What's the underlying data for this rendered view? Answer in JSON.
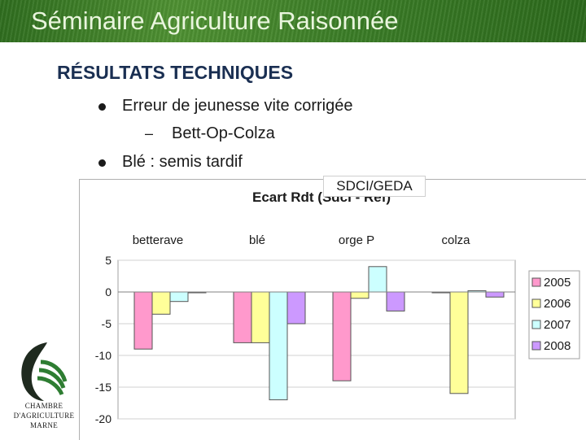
{
  "slide": {
    "title": "Séminaire Agriculture Raisonnée",
    "heading": "RÉSULTATS TECHNIQUES",
    "bullets": [
      {
        "text": "Erreur de jeunesse vite corrigée",
        "sub": "Bett-Op-Colza"
      },
      {
        "text": "Blé : semis tardif"
      }
    ],
    "source_tag": "SDCI/GEDA"
  },
  "logo": {
    "icon": "chambre-agriculture-logo-icon",
    "line1": "CHAMBRE",
    "line2": "D'AGRICULTURE",
    "line3": "MARNE"
  },
  "colors": {
    "banner": "#3b7d27",
    "heading": "#1a2f52",
    "s2005": "#ff99cc",
    "s2006": "#ffff99",
    "s2007": "#ccffff",
    "s2008": "#cc99ff"
  },
  "chart_data": {
    "type": "bar",
    "title": "Ecart Rdt (SdcI - Ref)",
    "categories": [
      "betterave",
      "blé",
      "orge P",
      "colza"
    ],
    "series": [
      {
        "name": "2005",
        "values": [
          -9,
          -8,
          -14,
          0
        ]
      },
      {
        "name": "2006",
        "values": [
          -3.5,
          -8,
          -1,
          -16
        ]
      },
      {
        "name": "2007",
        "values": [
          -1.5,
          -17,
          4,
          0.2
        ]
      },
      {
        "name": "2008",
        "values": [
          0,
          -5,
          -3,
          -0.8
        ]
      }
    ],
    "yticks": [
      5,
      0,
      -5,
      -10,
      -15,
      -20
    ],
    "ylim": [
      -20,
      5
    ],
    "grid": true,
    "legend": "right"
  }
}
